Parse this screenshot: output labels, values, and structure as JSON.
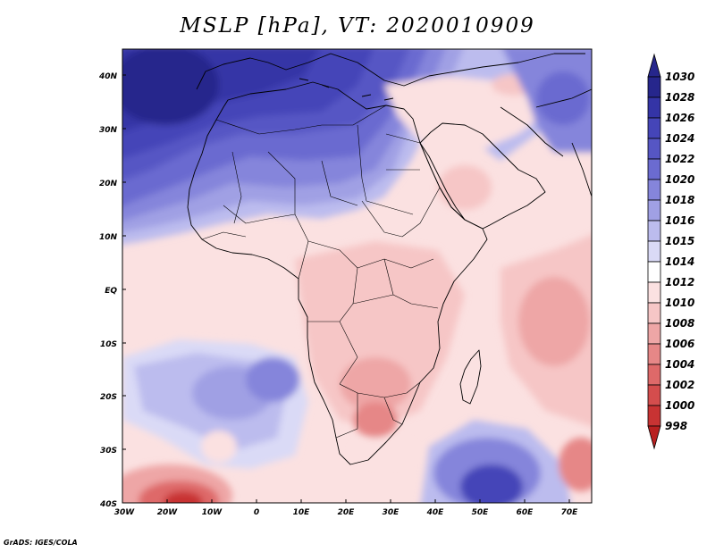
{
  "title": "MSLP [hPa], VT: 2020010909",
  "credit": "GrADS: IGES/COLA",
  "map": {
    "region": "Africa",
    "lon_range": [
      -30,
      75
    ],
    "lat_range": [
      -40,
      45
    ],
    "lat_ticks": [
      "40N",
      "30N",
      "20N",
      "10N",
      "EQ",
      "10S",
      "20S",
      "30S",
      "40S"
    ],
    "lon_ticks": [
      "30W",
      "20W",
      "10W",
      "0",
      "10E",
      "20E",
      "30E",
      "40E",
      "50E",
      "60E",
      "70E"
    ]
  },
  "colorbar": {
    "levels": [
      "1030",
      "1028",
      "1026",
      "1024",
      "1022",
      "1020",
      "1018",
      "1016",
      "1015",
      "1014",
      "1012",
      "1010",
      "1008",
      "1006",
      "1004",
      "1002",
      "1000",
      "998"
    ],
    "colors": [
      "#26268c",
      "#3434a6",
      "#4545b8",
      "#5656c4",
      "#6b6bd0",
      "#8585db",
      "#a0a0e4",
      "#bcbcee",
      "#dadaf6",
      "#ffffff",
      "#fbe1e1",
      "#f6c6c6",
      "#eea6a6",
      "#e68787",
      "#de6969",
      "#d44d4d",
      "#c83333",
      "#b82020"
    ]
  }
}
